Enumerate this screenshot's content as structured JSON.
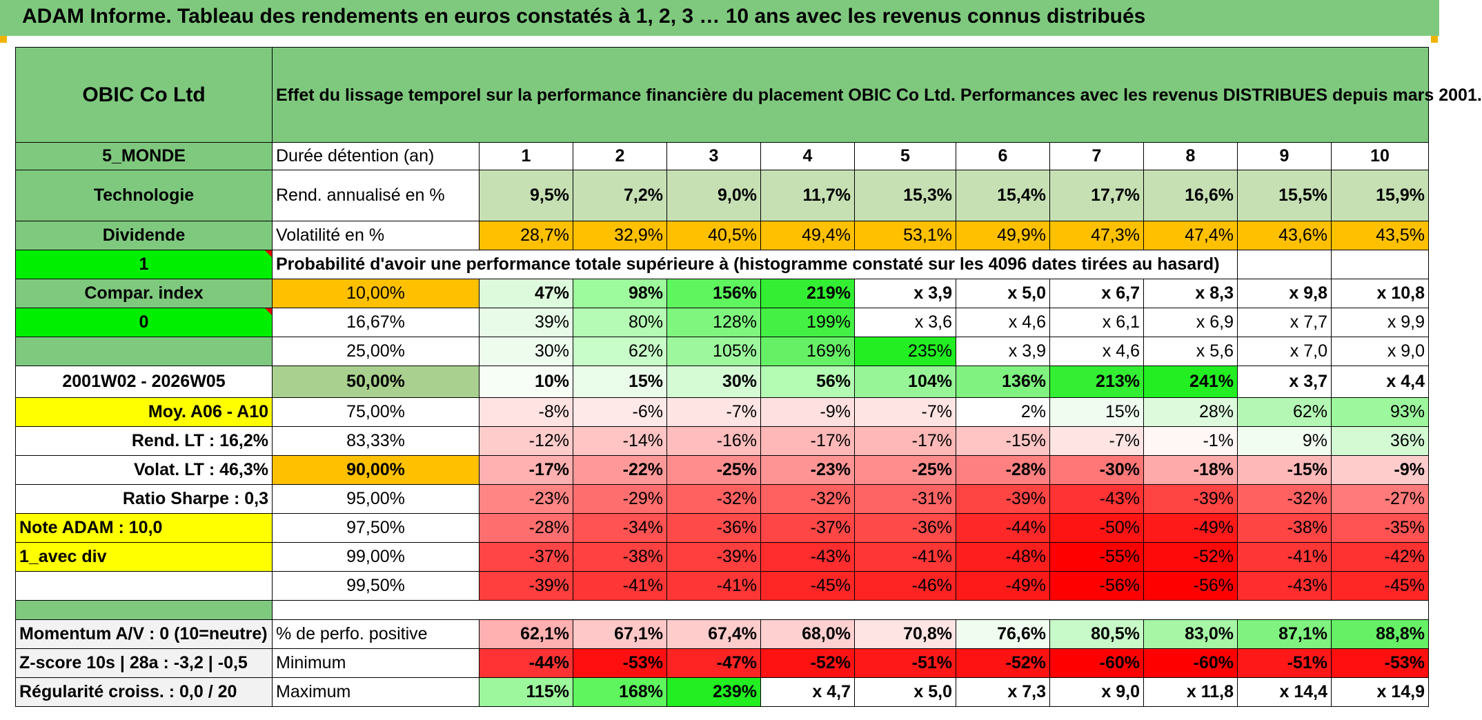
{
  "title": "ADAM Informe. Tableau des rendements en euros constatés à 1, 2, 3 … 10 ans avec les revenus connus distribués",
  "colors": {
    "header_green": "#7fc97f",
    "bright_green": "#00ee00",
    "yellow": "#ffff00",
    "orange": "#ffc000",
    "red_text": "#e60000"
  },
  "left": {
    "company": "OBIC Co Ltd",
    "zone": "5_MONDE",
    "sector": "Technologie",
    "dividend": "Dividende",
    "value_one": "1",
    "compar": "Compar. index",
    "value_zero": "0",
    "period": "2001W02 - 2026W05",
    "moy": "Moy. A06 - A10",
    "rend_lt": "Rend. LT :   16,2%",
    "volat_lt": "Volat. LT :   46,3%",
    "sharpe": "Ratio Sharpe :   0,3",
    "note": "Note ADAM : 10,0",
    "avec_div": "1_avec div",
    "momentum": "Momentum A/V : 0 (10=neutre)",
    "zscore": "Z-score 10s | 28a : -3,2 | -0,5",
    "regularite": "Régularité croiss. : 0,0 / 20"
  },
  "description": "Effet du lissage temporel sur la performance financière du placement OBIC Co Ltd. Performances avec les revenus DISTRIBUES depuis mars 2001.",
  "duration_label": "Durée détention (an)",
  "years": [
    "1",
    "2",
    "3",
    "4",
    "5",
    "6",
    "7",
    "8",
    "9",
    "10"
  ],
  "rend_label": "Rend. annualisé en %",
  "rend": [
    "9,5%",
    "7,2%",
    "9,0%",
    "11,7%",
    "15,3%",
    "15,4%",
    "17,7%",
    "16,6%",
    "15,5%",
    "15,9%"
  ],
  "vol_label": "Volatilité en %",
  "vol": [
    "28,7%",
    "32,9%",
    "40,5%",
    "49,4%",
    "53,1%",
    "49,9%",
    "47,3%",
    "47,4%",
    "43,6%",
    "43,5%"
  ],
  "prob_label": "Probabilité d'avoir une performance totale supérieure à (histogramme constaté sur les 4096 dates tirées au hasard)",
  "quantiles": [
    {
      "p": "10,00%",
      "v": [
        "47%",
        "98%",
        "156%",
        "219%",
        "x 3,9",
        "x 5,0",
        "x 6,7",
        "x 8,3",
        "x 9,8",
        "x 10,8"
      ]
    },
    {
      "p": "16,67%",
      "v": [
        "39%",
        "80%",
        "128%",
        "199%",
        "x 3,6",
        "x 4,6",
        "x 6,1",
        "x 6,9",
        "x 7,7",
        "x 9,9"
      ]
    },
    {
      "p": "25,00%",
      "v": [
        "30%",
        "62%",
        "105%",
        "169%",
        "235%",
        "x 3,9",
        "x 4,6",
        "x 5,6",
        "x 7,0",
        "x 9,0"
      ]
    },
    {
      "p": "50,00%",
      "v": [
        "10%",
        "15%",
        "30%",
        "56%",
        "104%",
        "136%",
        "213%",
        "241%",
        "x 3,7",
        "x 4,4"
      ]
    },
    {
      "p": "75,00%",
      "v": [
        "-8%",
        "-6%",
        "-7%",
        "-9%",
        "-7%",
        "2%",
        "15%",
        "28%",
        "62%",
        "93%"
      ]
    },
    {
      "p": "83,33%",
      "v": [
        "-12%",
        "-14%",
        "-16%",
        "-17%",
        "-17%",
        "-15%",
        "-7%",
        "-1%",
        "9%",
        "36%"
      ]
    },
    {
      "p": "90,00%",
      "v": [
        "-17%",
        "-22%",
        "-25%",
        "-23%",
        "-25%",
        "-28%",
        "-30%",
        "-18%",
        "-15%",
        "-9%"
      ]
    },
    {
      "p": "95,00%",
      "v": [
        "-23%",
        "-29%",
        "-32%",
        "-32%",
        "-31%",
        "-39%",
        "-43%",
        "-39%",
        "-32%",
        "-27%"
      ]
    },
    {
      "p": "97,50%",
      "v": [
        "-28%",
        "-34%",
        "-36%",
        "-37%",
        "-36%",
        "-44%",
        "-50%",
        "-49%",
        "-38%",
        "-35%"
      ]
    },
    {
      "p": "99,00%",
      "v": [
        "-37%",
        "-38%",
        "-39%",
        "-43%",
        "-41%",
        "-48%",
        "-55%",
        "-52%",
        "-41%",
        "-42%"
      ]
    },
    {
      "p": "99,50%",
      "v": [
        "-39%",
        "-41%",
        "-41%",
        "-45%",
        "-46%",
        "-49%",
        "-56%",
        "-56%",
        "-43%",
        "-45%"
      ]
    }
  ],
  "pos_label": "% de perfo. positive",
  "pos": [
    "62,1%",
    "67,1%",
    "67,4%",
    "68,0%",
    "70,8%",
    "76,6%",
    "80,5%",
    "83,0%",
    "87,1%",
    "88,8%"
  ],
  "min_label": "Minimum",
  "min": [
    "-44%",
    "-53%",
    "-47%",
    "-52%",
    "-51%",
    "-52%",
    "-60%",
    "-60%",
    "-51%",
    "-53%"
  ],
  "max_label": "Maximum",
  "max": [
    "115%",
    "168%",
    "239%",
    "x 4,7",
    "x 5,0",
    "x 7,3",
    "x 9,0",
    "x 11,8",
    "x 14,4",
    "x 14,9"
  ],
  "cell_colors": {
    "rend": [
      "#c6e0b4",
      "#c6e0b4",
      "#c6e0b4",
      "#c6e0b4",
      "#c6e0b4",
      "#c6e0b4",
      "#c6e0b4",
      "#c6e0b4",
      "#c6e0b4",
      "#c6e0b4"
    ],
    "vol": [
      "#ffc000",
      "#ffc000",
      "#ffc000",
      "#ffc000",
      "#ffc000",
      "#ffc000",
      "#ffc000",
      "#ffc000",
      "#ffc000",
      "#ffc000"
    ],
    "q": [
      [
        "#ddfadd",
        "#9dfa9d",
        "#5ef55e",
        "#33ee33",
        "#fff",
        "#fff",
        "#fff",
        "#fff",
        "#fff",
        "#fff"
      ],
      [
        "#e8fbe8",
        "#b5fbb5",
        "#7ff77f",
        "#44f044",
        "#fff",
        "#fff",
        "#fff",
        "#fff",
        "#fff",
        "#fff"
      ],
      [
        "#eefcee",
        "#c8fcc8",
        "#9df89d",
        "#66f066",
        "#22ee22",
        "#fff",
        "#fff",
        "#fff",
        "#fff",
        "#fff"
      ],
      [
        "#f6fef6",
        "#eafcea",
        "#d4fbd4",
        "#b4fbb4",
        "#97f597",
        "#7ff27f",
        "#33ee33",
        "#22ee22",
        "#fff",
        "#fff"
      ],
      [
        "#ffe3e3",
        "#ffe8e8",
        "#ffe4e4",
        "#ffe0e0",
        "#ffe4e4",
        "#ffffff",
        "#f0fcf0",
        "#ddfadd",
        "#b4f7b4",
        "#9df79d"
      ],
      [
        "#ffcccc",
        "#ffc4c4",
        "#ffbdbd",
        "#ffb8b8",
        "#ffb8b8",
        "#ffc4c4",
        "#ffe4e4",
        "#fff6f6",
        "#f2fdf2",
        "#d4fad4"
      ],
      [
        "#ffb0b0",
        "#ff9999",
        "#ff8d8d",
        "#ff9494",
        "#ff8d8d",
        "#ff8080",
        "#ff7777",
        "#ffaaaa",
        "#ffb8b8",
        "#ffcccc"
      ],
      [
        "#ff8585",
        "#ff6e6e",
        "#ff6060",
        "#ff6060",
        "#ff6464",
        "#ff4444",
        "#ff3333",
        "#ff4444",
        "#ff6060",
        "#ff7a7a"
      ],
      [
        "#ff6e6e",
        "#ff5252",
        "#ff4a4a",
        "#ff4646",
        "#ff4a4a",
        "#ff2828",
        "#ff1414",
        "#ff1a1a",
        "#ff4444",
        "#ff5252"
      ],
      [
        "#ff4545",
        "#ff4141",
        "#ff3e3e",
        "#ff2d2d",
        "#ff3636",
        "#ff1e1e",
        "#ff0000",
        "#ff0a0a",
        "#ff3636",
        "#ff3232"
      ],
      [
        "#ff3e3e",
        "#ff3636",
        "#ff3636",
        "#ff2626",
        "#ff2424",
        "#ff1a1a",
        "#ff0000",
        "#ff0000",
        "#ff2d2d",
        "#ff2626"
      ]
    ],
    "pos": [
      "#ffb0b0",
      "#ffc8c8",
      "#ffcccc",
      "#ffd0d0",
      "#ffe4e4",
      "#f0fcf0",
      "#c8f9c8",
      "#a6f6a6",
      "#7ff27f",
      "#66f066"
    ],
    "min": [
      "#ff3333",
      "#ff0f0f",
      "#ff2424",
      "#ff1212",
      "#ff1818",
      "#ff1212",
      "#ff0000",
      "#ff0000",
      "#ff1818",
      "#ff0f0f"
    ],
    "max": [
      "#9df79d",
      "#5ef55e",
      "#22ee22",
      "#fff",
      "#fff",
      "#fff",
      "#fff",
      "#fff",
      "#fff",
      "#fff"
    ]
  }
}
